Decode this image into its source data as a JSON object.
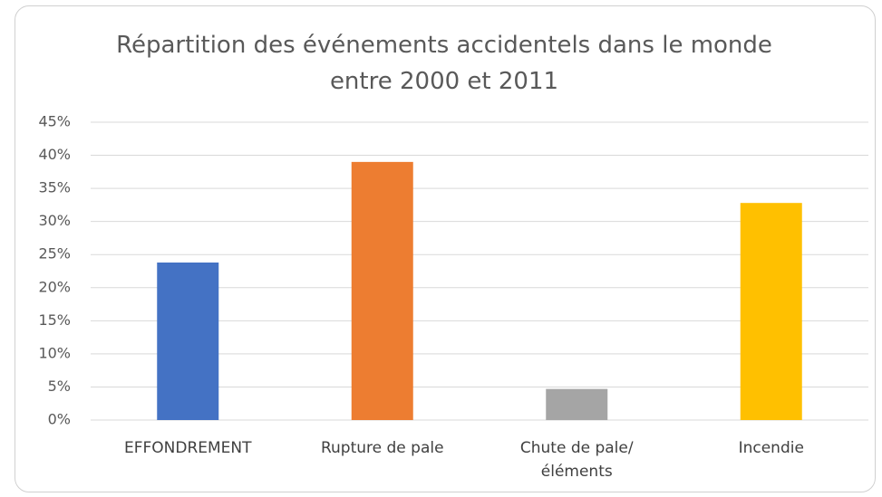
{
  "chart_data": {
    "type": "bar",
    "title": "Répartition des événements accidentels dans le monde entre 2000 et 2011",
    "categories": [
      "EFFONDREMENT",
      "Rupture de pale",
      "Chute de pale/éléments",
      "Incendie"
    ],
    "values": [
      23.8,
      39,
      4.7,
      32.8
    ],
    "colors": [
      "#4472c4",
      "#ed7d31",
      "#a5a5a5",
      "#ffc000"
    ],
    "ylim": [
      0,
      45
    ],
    "yticks": [
      {
        "value": 0,
        "label": "0%"
      },
      {
        "value": 5,
        "label": "5%"
      },
      {
        "value": 10,
        "label": "10%"
      },
      {
        "value": 15,
        "label": "15%"
      },
      {
        "value": 20,
        "label": "20%"
      },
      {
        "value": 25,
        "label": "25%"
      },
      {
        "value": 30,
        "label": "30%"
      },
      {
        "value": 35,
        "label": "35%"
      },
      {
        "value": 40,
        "label": "40%"
      },
      {
        "value": 45,
        "label": "45%"
      }
    ],
    "grid": true
  }
}
